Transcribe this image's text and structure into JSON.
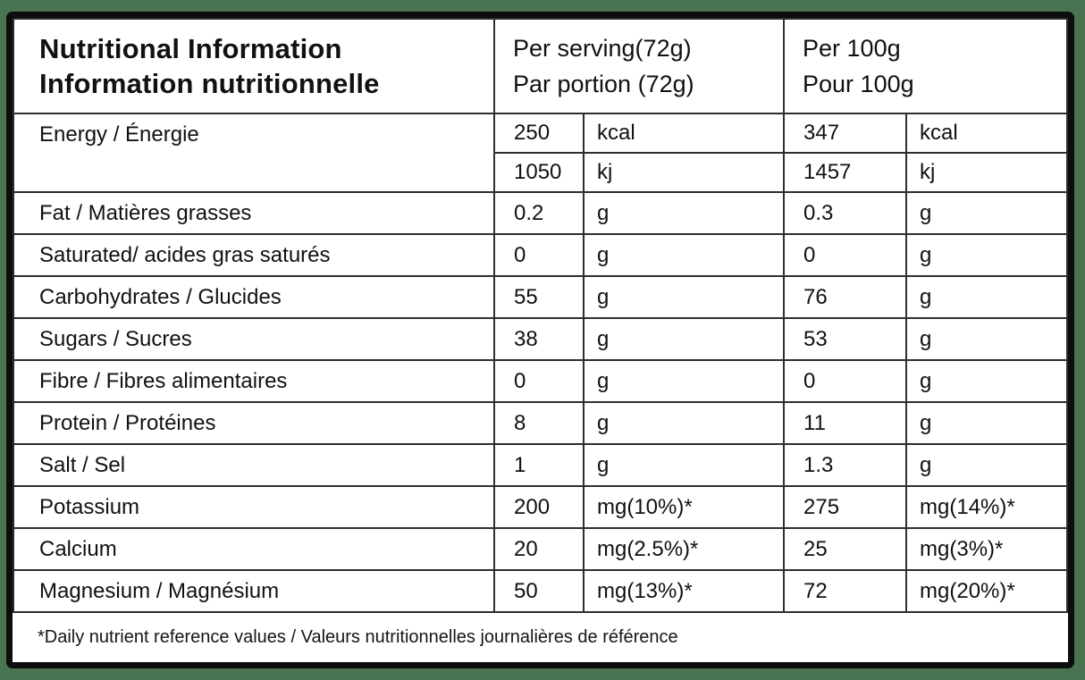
{
  "colors": {
    "background": "#4a7351",
    "card_background": "#ffffff",
    "outer_border": "#0d0d0d",
    "grid_line": "#2e2e2e",
    "text": "#111111"
  },
  "header": {
    "title_line1": "Nutritional Information",
    "title_line2": "Information nutritionnelle",
    "per_serving_line1": "Per serving(72g)",
    "per_serving_line2": "Par portion (72g)",
    "per_100g_line1": "Per 100g",
    "per_100g_line2": "Pour 100g"
  },
  "energy_row": {
    "label": "Energy / Énergie",
    "sub_rows": [
      {
        "serving_value": "250",
        "serving_unit": "kcal",
        "per100_value": "347",
        "per100_unit": "kcal"
      },
      {
        "serving_value": "1050",
        "serving_unit": "kj",
        "per100_value": "1457",
        "per100_unit": "kj"
      }
    ]
  },
  "rows": [
    {
      "label": "Fat / Matières grasses",
      "serving_value": "0.2",
      "serving_unit": "g",
      "per100_value": "0.3",
      "per100_unit": "g"
    },
    {
      "label": "Saturated/ acides gras saturés",
      "serving_value": "0",
      "serving_unit": "g",
      "per100_value": "0",
      "per100_unit": "g"
    },
    {
      "label": "Carbohydrates / Glucides",
      "serving_value": "55",
      "serving_unit": "g",
      "per100_value": "76",
      "per100_unit": "g"
    },
    {
      "label": "Sugars / Sucres",
      "serving_value": "38",
      "serving_unit": "g",
      "per100_value": "53",
      "per100_unit": "g"
    },
    {
      "label": "Fibre / Fibres alimentaires",
      "serving_value": "0",
      "serving_unit": "g",
      "per100_value": "0",
      "per100_unit": "g"
    },
    {
      "label": "Protein / Protéines",
      "serving_value": "8",
      "serving_unit": "g",
      "per100_value": "11",
      "per100_unit": "g"
    },
    {
      "label": "Salt / Sel",
      "serving_value": "1",
      "serving_unit": "g",
      "per100_value": "1.3",
      "per100_unit": "g"
    },
    {
      "label": "Potassium",
      "serving_value": "200",
      "serving_unit": "mg(10%)*",
      "per100_value": "275",
      "per100_unit": "mg(14%)*"
    },
    {
      "label": "Calcium",
      "serving_value": "20",
      "serving_unit": "mg(2.5%)*",
      "per100_value": "25",
      "per100_unit": "mg(3%)*"
    },
    {
      "label": "Magnesium / Magnésium",
      "serving_value": "50",
      "serving_unit": "mg(13%)*",
      "per100_value": "72",
      "per100_unit": "mg(20%)*"
    }
  ],
  "footnote": "*Daily nutrient reference values / Valeurs nutritionnelles journalières de référence"
}
